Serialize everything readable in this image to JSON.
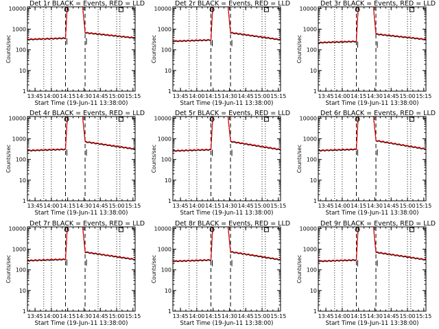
{
  "figure": {
    "xlabel": "Start Time (19-Jun-11 13:38:00)",
    "ylabel": "Counts/sec"
  },
  "chart_data": {
    "type": "line",
    "x_unit": "time of day",
    "x_ticks": [
      "13:45",
      "14:00",
      "14:15",
      "14:30",
      "14:45",
      "15:00",
      "15:15"
    ],
    "x_range": [
      "13:38",
      "15:17"
    ],
    "y_scale": "log",
    "y_ticks": [
      "1",
      "10",
      "100",
      "1000",
      "10000"
    ],
    "ylim": [
      1,
      12000
    ],
    "grid": "vertical dotted at hour ticks",
    "vertical_markers_dashed": [
      "14:13",
      "14:31"
    ],
    "vertical_markers_dotted": [
      "13:53",
      "14:43",
      "15:03"
    ],
    "top_markers": [
      {
        "symbol": "circle",
        "x": "14:14"
      },
      {
        "symbol": "square",
        "x": "15:04"
      }
    ],
    "colors": {
      "events": "#000000",
      "lld": "#e00000"
    },
    "panels": [
      {
        "title": "Det 1r BLACK = Events, RED = LLD",
        "base": 330,
        "post": 560,
        "end": 390
      },
      {
        "title": "Det 2r BLACK = Events, RED = LLD",
        "base": 270,
        "post": 560,
        "end": 320
      },
      {
        "title": "Det 3r BLACK = Events, RED = LLD",
        "base": 230,
        "post": 480,
        "end": 330
      },
      {
        "title": "Det 4r BLACK = Events, RED = LLD",
        "base": 280,
        "post": 600,
        "end": 330
      },
      {
        "title": "Det 5r BLACK = Events, RED = LLD",
        "base": 270,
        "post": 620,
        "end": 310
      },
      {
        "title": "Det 6r BLACK = Events, RED = LLD",
        "base": 280,
        "post": 680,
        "end": 330
      },
      {
        "title": "Det 7r BLACK = Events, RED = LLD",
        "base": 290,
        "post": 600,
        "end": 330
      },
      {
        "title": "Det 8r BLACK = Events, RED = LLD",
        "base": 270,
        "post": 620,
        "end": 320
      },
      {
        "title": "Det 9r BLACK = Events, RED = LLD",
        "base": 270,
        "post": 590,
        "end": 320
      }
    ]
  }
}
